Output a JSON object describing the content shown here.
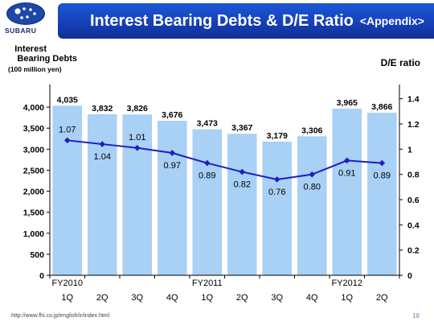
{
  "header": {
    "logo_text": "SUBARU",
    "title": "Interest Bearing Debts & D/E Ratio",
    "subtitle": "<Appendix>"
  },
  "footer": {
    "url": "http://www.fhi.co.jp/english/ir/index.html",
    "page": "18"
  },
  "colors": {
    "banner": "#1640b8",
    "bar": "#a9d0f5",
    "line": "#1f1fbf",
    "logo": "#1a2a6c"
  },
  "chart_data": {
    "type": "bar",
    "categories": [
      "1Q",
      "2Q",
      "3Q",
      "4Q",
      "1Q",
      "2Q",
      "3Q",
      "4Q",
      "1Q",
      "2Q"
    ],
    "fiscal_year_labels": [
      {
        "label": "FY2010",
        "index": 0
      },
      {
        "label": "FY2011",
        "index": 4
      },
      {
        "label": "FY2012",
        "index": 8
      }
    ],
    "series": [
      {
        "name": "Interest Bearing Debts",
        "type": "bar",
        "axis": "left",
        "values": [
          4035,
          3832,
          3826,
          3676,
          3473,
          3367,
          3179,
          3306,
          3965,
          3866
        ],
        "labels": [
          "4,035",
          "3,832",
          "3,826",
          "3,676",
          "3,473",
          "3,367",
          "3,179",
          "3,306",
          "3,965",
          "3,866"
        ]
      },
      {
        "name": "D/E ratio",
        "type": "line",
        "axis": "right",
        "values": [
          1.07,
          1.04,
          1.01,
          0.97,
          0.89,
          0.82,
          0.76,
          0.8,
          0.91,
          0.89
        ],
        "labels": [
          "1.07",
          "1.04",
          "1.01",
          "0.97",
          "0.89",
          "0.82",
          "0.76",
          "0.80",
          "0.91",
          "0.89"
        ]
      }
    ],
    "y_left": {
      "label_lines": [
        "Interest",
        "Bearing Debts",
        "(100 million yen)"
      ],
      "ylim": [
        0,
        4500
      ],
      "ticks": [
        0,
        500,
        1000,
        1500,
        2000,
        2500,
        3000,
        3500,
        4000
      ],
      "tick_labels": [
        "0",
        "500",
        "1,000",
        "1,500",
        "2,000",
        "2,500",
        "3,000",
        "3,500",
        "4,000"
      ]
    },
    "y_right": {
      "label": "D/E ratio",
      "ylim": [
        0,
        1.5
      ],
      "ticks": [
        0,
        0.2,
        0.4,
        0.6,
        0.8,
        1,
        1.2,
        1.4
      ],
      "tick_labels": [
        "0",
        "0.2",
        "0.4",
        "0.6",
        "0.8",
        "1",
        "1.2",
        "1.4"
      ]
    },
    "grid": false
  }
}
